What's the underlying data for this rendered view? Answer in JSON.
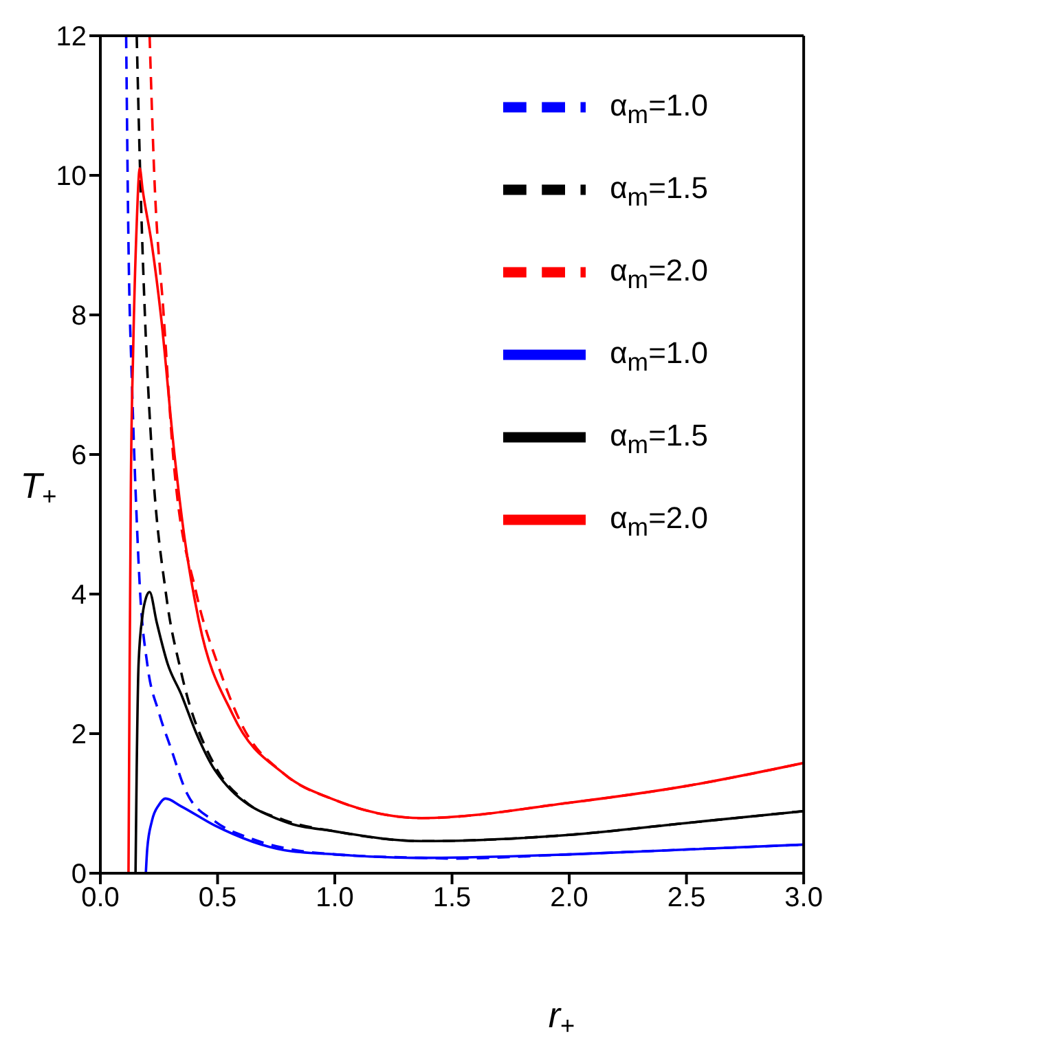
{
  "chart_data": {
    "type": "line",
    "xlabel": "r$_{+}$",
    "ylabel": "T$_{+}$",
    "xlim": [
      0,
      3
    ],
    "ylim": [
      0,
      12
    ],
    "xticks": [
      {
        "value": 0,
        "label": "0.0"
      },
      {
        "value": 0.5,
        "label": "0.5"
      },
      {
        "value": 1,
        "label": "1.0"
      },
      {
        "value": 1.5,
        "label": "1.5"
      },
      {
        "value": 2,
        "label": "2.0"
      },
      {
        "value": 2.5,
        "label": "2.5"
      },
      {
        "value": 3,
        "label": "3.0"
      }
    ],
    "yticks": [
      0,
      2,
      4,
      6,
      8,
      10,
      12
    ],
    "grid": false,
    "legend": "top right",
    "marker": "none",
    "series": [
      {
        "name": "α$_{m}$=1.0",
        "color": "#0000ff",
        "line_style": "dashed",
        "x": [
          0.11,
          0.12,
          0.135,
          0.15,
          0.17,
          0.2,
          0.25,
          0.3,
          0.37,
          0.49,
          0.64,
          0.8,
          1.0,
          1.37,
          1.5,
          2.0,
          2.5,
          3.0
        ],
        "values": [
          12,
          9,
          7,
          5.5,
          4,
          3.0,
          2.3,
          1.8,
          1.14,
          0.74,
          0.5,
          0.35,
          0.27,
          0.22,
          0.21,
          0.27,
          0.34,
          0.41
        ]
      },
      {
        "name": "α$_{m}$=1.5",
        "color": "#000000",
        "line_style": "dashed",
        "x": [
          0.155,
          0.17,
          0.19,
          0.22,
          0.28,
          0.344,
          0.49,
          0.61,
          0.785,
          1.0,
          1.37,
          2.0,
          2.5,
          3.0
        ],
        "values": [
          12,
          10,
          8,
          6,
          4,
          2.89,
          1.53,
          1.05,
          0.76,
          0.6,
          0.46,
          0.55,
          0.72,
          0.89
        ]
      },
      {
        "name": "α$_{m}$=2.0",
        "color": "#ff0000",
        "line_style": "dashed",
        "x": [
          0.21,
          0.23,
          0.27,
          0.31,
          0.41,
          0.5,
          0.6,
          0.785,
          1.0,
          1.37,
          2.0,
          2.5,
          3.0
        ],
        "values": [
          12,
          10,
          8,
          6,
          4,
          3.0,
          2.15,
          1.42,
          1.05,
          0.79,
          1.01,
          1.25,
          1.58
        ]
      },
      {
        "name": "α$_{m}$=1.0",
        "color": "#0000ff",
        "line_style": "solid",
        "x": [
          0.194,
          0.2,
          0.22,
          0.25,
          0.278,
          0.344,
          0.49,
          0.785,
          1.0,
          1.37,
          2.0,
          2.5,
          3.0
        ],
        "values": [
          0,
          0.35,
          0.75,
          0.98,
          1.07,
          0.96,
          0.68,
          0.33,
          0.27,
          0.22,
          0.27,
          0.34,
          0.41
        ]
      },
      {
        "name": "α$_{m}$=1.5",
        "color": "#000000",
        "line_style": "solid",
        "x": [
          0.15,
          0.155,
          0.163,
          0.18,
          0.195,
          0.21,
          0.24,
          0.287,
          0.344,
          0.41,
          0.49,
          0.785,
          1.0,
          1.37,
          2.0,
          2.5,
          3.0
        ],
        "values": [
          0,
          1.5,
          3,
          3.7,
          3.95,
          4.03,
          3.6,
          3,
          2.57,
          2.0,
          1.47,
          0.74,
          0.6,
          0.46,
          0.55,
          0.72,
          0.89
        ]
      },
      {
        "name": "α$_{m}$=2.0",
        "color": "#ff0000",
        "line_style": "solid",
        "x": [
          0.12,
          0.125,
          0.13,
          0.14,
          0.155,
          0.168,
          0.18,
          0.22,
          0.258,
          0.316,
          0.36,
          0.42,
          0.565,
          0.785,
          1.0,
          1.37,
          2.0,
          2.5,
          3.0
        ],
        "values": [
          0,
          3,
          5.5,
          7.5,
          9.3,
          10.1,
          9.8,
          9,
          8,
          6,
          4.78,
          3.62,
          2.27,
          1.42,
          1.05,
          0.79,
          1.01,
          1.25,
          1.58
        ]
      }
    ]
  }
}
